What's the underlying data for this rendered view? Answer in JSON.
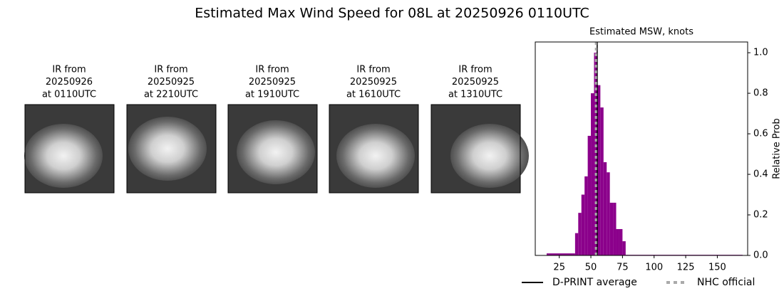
{
  "title": "Estimated Max Wind Speed for 08L at 20250926 0110UTC",
  "panels": [
    {
      "lines": [
        "IR from",
        "20250926",
        "at 0110UTC"
      ]
    },
    {
      "lines": [
        "IR from",
        "20250925",
        "at 2210UTC"
      ]
    },
    {
      "lines": [
        "IR from",
        "20250925",
        "at 1910UTC"
      ]
    },
    {
      "lines": [
        "IR from",
        "20250925",
        "at 1610UTC"
      ]
    },
    {
      "lines": [
        "IR from",
        "20250925",
        "at 1310UTC"
      ]
    }
  ],
  "chart_data": {
    "type": "histogram",
    "title": "Estimated MSW, knots",
    "ylabel": "Relative Prob",
    "bins": [
      15,
      37.5,
      40,
      42.5,
      45,
      47.5,
      50,
      52.5,
      55,
      57.5,
      60,
      62.5,
      65,
      67.5,
      70,
      72.5,
      75,
      77.5,
      80,
      170
    ],
    "values": [
      0.01,
      0.11,
      0.21,
      0.3,
      0.39,
      0.59,
      0.8,
      1.0,
      0.84,
      0.73,
      0.46,
      0.41,
      0.26,
      0.26,
      0.13,
      0.13,
      0.07,
      0.003,
      0.003
    ],
    "color": "#8b008b",
    "xlim": [
      6,
      174
    ],
    "ylim": [
      0,
      1.053
    ],
    "xticks": [
      25,
      50,
      75,
      100,
      125,
      150
    ],
    "yticks": [
      {
        "value": 0,
        "label": "0.0"
      },
      {
        "value": 0.2,
        "label": "0.2"
      },
      {
        "value": 0.4,
        "label": "0.4"
      },
      {
        "value": 0.6,
        "label": "0.6"
      },
      {
        "value": 0.8,
        "label": "0.8"
      },
      {
        "value": 1.0,
        "label": "1.0"
      }
    ],
    "lines": [
      {
        "name": "D-PRINT average",
        "value": 55,
        "color": "#000000",
        "style": "solid"
      },
      {
        "name": "NHC official",
        "value": 54,
        "color": "#aaaaaa",
        "style": "dotted"
      }
    ]
  }
}
